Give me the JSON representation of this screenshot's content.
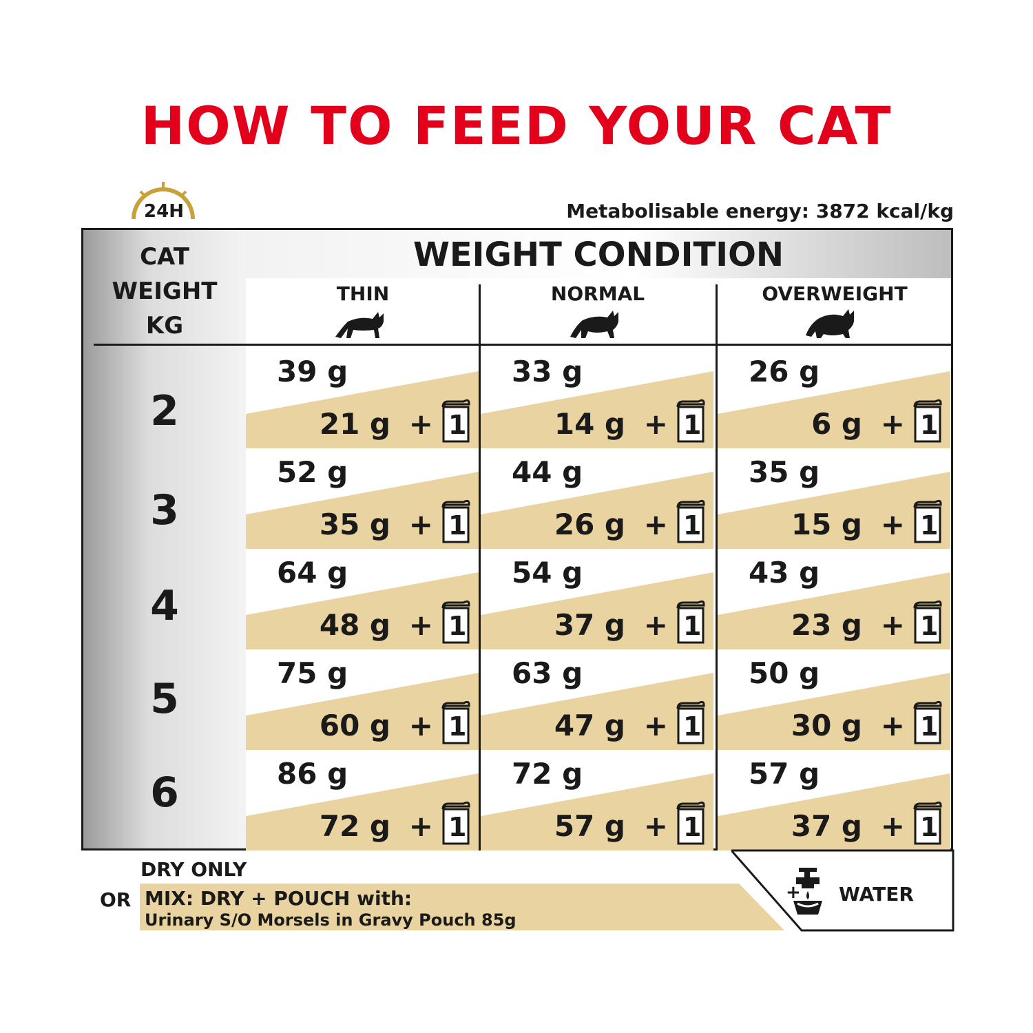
{
  "title": "HOW TO FEED YOUR CAT",
  "clock_label": "24H",
  "energy": "Metabolisable energy: 3872 kcal/kg",
  "cat_weight_header": [
    "CAT",
    "WEIGHT",
    "KG"
  ],
  "weight_condition_title": "WEIGHT CONDITION",
  "columns": [
    "THIN",
    "NORMAL",
    "OVERWEIGHT"
  ],
  "plus_sign": "+",
  "pouch_count": "1",
  "rows": [
    {
      "weight": "2",
      "cells": [
        {
          "dry": "39 g",
          "mix": "21 g"
        },
        {
          "dry": "33 g",
          "mix": "14 g"
        },
        {
          "dry": "26 g",
          "mix": "6 g"
        }
      ]
    },
    {
      "weight": "3",
      "cells": [
        {
          "dry": "52 g",
          "mix": "35 g"
        },
        {
          "dry": "44 g",
          "mix": "26 g"
        },
        {
          "dry": "35 g",
          "mix": "15 g"
        }
      ]
    },
    {
      "weight": "4",
      "cells": [
        {
          "dry": "64 g",
          "mix": "48 g"
        },
        {
          "dry": "54 g",
          "mix": "37 g"
        },
        {
          "dry": "43 g",
          "mix": "23 g"
        }
      ]
    },
    {
      "weight": "5",
      "cells": [
        {
          "dry": "75 g",
          "mix": "60 g"
        },
        {
          "dry": "63 g",
          "mix": "47 g"
        },
        {
          "dry": "50 g",
          "mix": "30 g"
        }
      ]
    },
    {
      "weight": "6",
      "cells": [
        {
          "dry": "86 g",
          "mix": "72 g"
        },
        {
          "dry": "72 g",
          "mix": "57 g"
        },
        {
          "dry": "57 g",
          "mix": "37 g"
        }
      ]
    }
  ],
  "legend": {
    "dry_only": "DRY ONLY",
    "or": "OR",
    "mix_line1": "MIX: DRY + POUCH with:",
    "mix_line2": "Urinary S/O Morsels in Gravy Pouch 85g",
    "water_plus": "+",
    "water": "WATER"
  },
  "colors": {
    "title": "#e2001a",
    "band": "#e9d3a0",
    "gold": "#c8a13a"
  }
}
